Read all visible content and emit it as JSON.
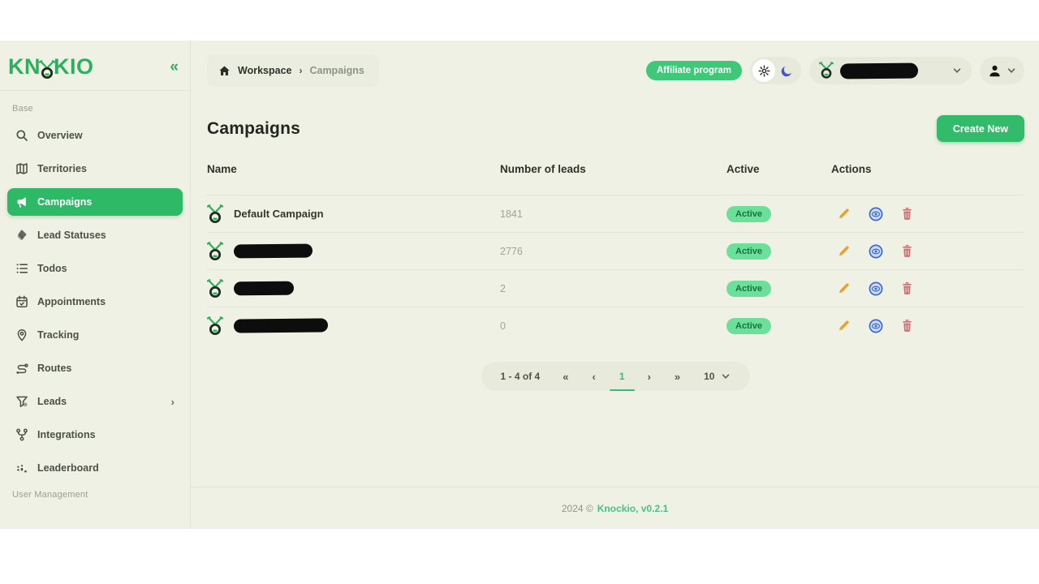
{
  "brand": {
    "logo_left": "KN",
    "logo_right": "KIO",
    "collapse_glyph": "«"
  },
  "sidebar": {
    "base_label": "Base",
    "user_management_label": "User Management",
    "items": [
      {
        "label": "Overview",
        "icon": "magnifier",
        "active": false
      },
      {
        "label": "Territories",
        "icon": "territories",
        "active": false
      },
      {
        "label": "Campaigns",
        "icon": "megaphone",
        "active": true
      },
      {
        "label": "Lead Statuses",
        "icon": "tags",
        "active": false
      },
      {
        "label": "Todos",
        "icon": "list",
        "active": false
      },
      {
        "label": "Appointments",
        "icon": "calendar",
        "active": false
      },
      {
        "label": "Tracking",
        "icon": "map-pin",
        "active": false
      },
      {
        "label": "Routes",
        "icon": "route",
        "active": false
      },
      {
        "label": "Leads",
        "icon": "funnel",
        "active": false,
        "has_chevron": true,
        "chevron": "›"
      },
      {
        "label": "Integrations",
        "icon": "git-branch",
        "active": false
      },
      {
        "label": "Leaderboard",
        "icon": "bar-chart",
        "active": false
      }
    ]
  },
  "topbar": {
    "breadcrumb": {
      "root": "Workspace",
      "separator": "›",
      "current": "Campaigns"
    },
    "affiliate_label": "Affiliate program",
    "workspace": {
      "redacted": true
    }
  },
  "page": {
    "title": "Campaigns",
    "create_label": "Create New"
  },
  "table": {
    "columns": {
      "name": "Name",
      "leads": "Number of leads",
      "active": "Active",
      "actions": "Actions"
    },
    "rows": [
      {
        "name": "Default Campaign",
        "redacted": false,
        "leads": "1841",
        "status": "Active"
      },
      {
        "name": "",
        "redacted": true,
        "redact_width": 97,
        "leads": "2776",
        "status": "Active"
      },
      {
        "name": "",
        "redacted": true,
        "redact_width": 74,
        "leads": "2",
        "status": "Active"
      },
      {
        "name": "",
        "redacted": true,
        "redact_width": 116,
        "leads": "0",
        "status": "Active"
      }
    ]
  },
  "pagination": {
    "summary": "1 - 4 of 4",
    "first_glyph": "«",
    "prev_glyph": "‹",
    "current_page": "1",
    "next_glyph": "›",
    "last_glyph": "»",
    "page_size": "10"
  },
  "footer": {
    "copyright": "2024 ©",
    "brand_version": "Knockio, v0.2.1"
  },
  "colors": {
    "primary_green": "#2eb966",
    "logo_green": "#2fae60",
    "badge_bg": "#6ce09a",
    "badge_text": "#17713e",
    "background": "#eff1e4",
    "moon_blue": "#3d56d6",
    "pencil_amber": "#e2a23e",
    "eye_blue": "#3e6ad0",
    "trash_red": "#cb7070"
  }
}
